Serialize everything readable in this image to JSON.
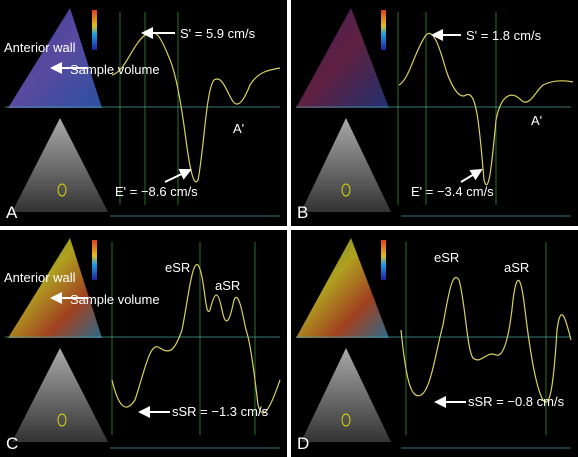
{
  "panels": [
    {
      "label": "A",
      "annotations": [
        "Anterior wall",
        "Sample volume",
        "S' = 5.9 cm/s",
        "A'",
        "E' = −8.6 cm/s"
      ]
    },
    {
      "label": "B",
      "annotations": [
        "S' = 1.8 cm/s",
        "A'",
        "E' = −3.4 cm/s"
      ]
    },
    {
      "label": "C",
      "annotations": [
        "Anterior wall",
        "Sample volume",
        "eSR",
        "aSR",
        "sSR = −1.3 cm/s"
      ]
    },
    {
      "label": "D",
      "annotations": [
        "eSR",
        "aSR",
        "sSR = −0.8 cm/s"
      ]
    }
  ]
}
